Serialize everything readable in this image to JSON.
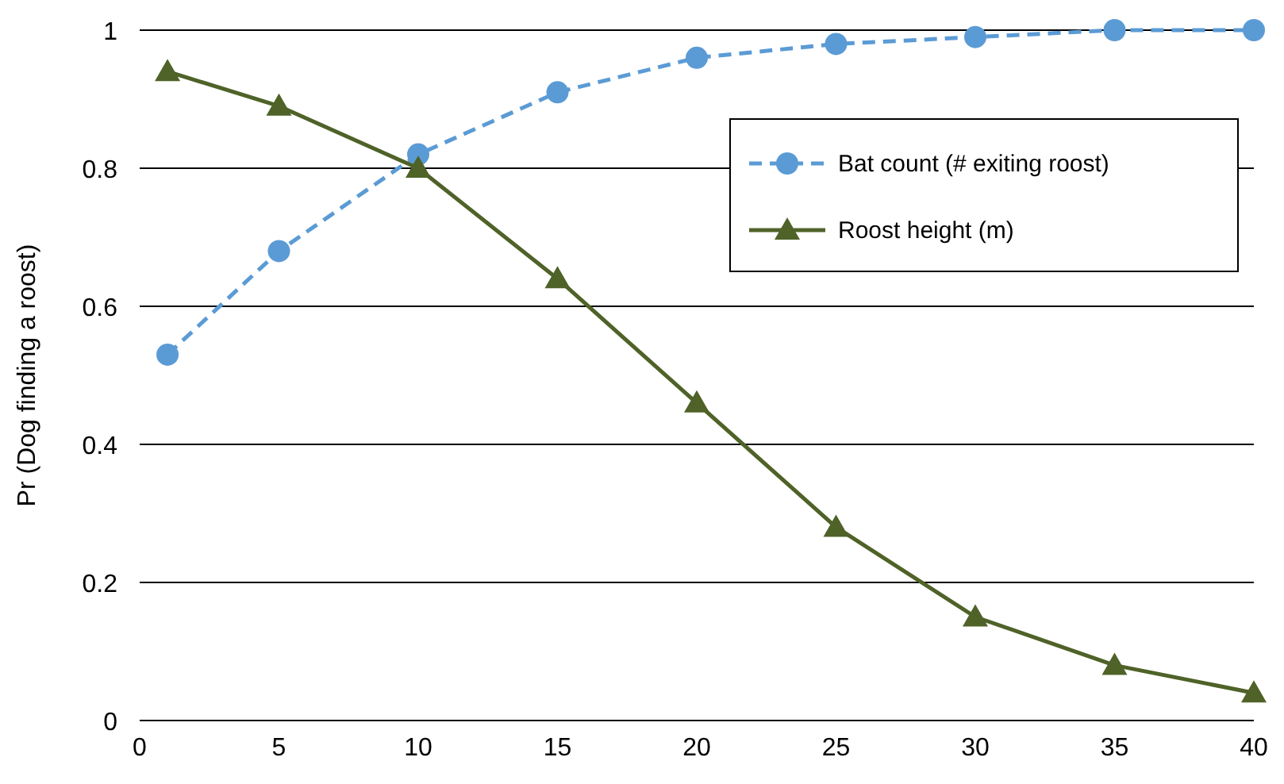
{
  "chart_data": {
    "type": "line",
    "ylabel": "Pr (Dog finding a roost)",
    "x": [
      1,
      5,
      10,
      15,
      20,
      25,
      30,
      35,
      40
    ],
    "series": [
      {
        "name": "Bat count (# exiting roost)",
        "color": "#5b9bd5",
        "marker": "circle",
        "line_style": "dashed",
        "values": [
          0.53,
          0.68,
          0.82,
          0.91,
          0.96,
          0.98,
          0.99,
          1.0,
          1.0
        ]
      },
      {
        "name": "Roost height (m)",
        "color": "#4f6228",
        "marker": "triangle",
        "line_style": "solid",
        "values": [
          0.94,
          0.89,
          0.8,
          0.64,
          0.46,
          0.28,
          0.15,
          0.08,
          0.04
        ]
      }
    ],
    "xlim": [
      0,
      40
    ],
    "xticks": [
      0,
      5,
      10,
      15,
      20,
      25,
      30,
      35,
      40
    ],
    "ylim": [
      0,
      1
    ],
    "yticks": [
      0,
      0.2,
      0.4,
      0.6,
      0.8,
      1
    ],
    "grid": "y",
    "legend": "top right"
  }
}
